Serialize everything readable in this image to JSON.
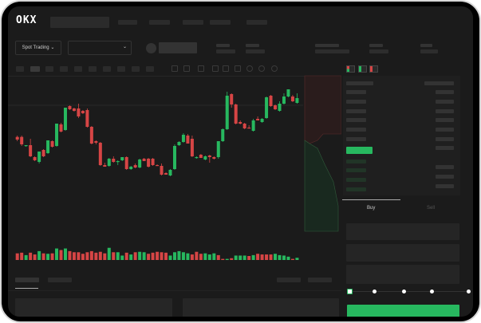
{
  "header": {
    "logo": "OKX"
  },
  "market": {
    "mode_button": "Spot Trading",
    "pair_dropdown": ""
  },
  "trade": {
    "tabs": [
      {
        "label": "Buy",
        "active": true
      },
      {
        "label": "Sell",
        "active": false
      }
    ],
    "slider_percent": 0
  },
  "colors": {
    "up": "#27b85f",
    "down": "#d64545",
    "background": "#1b1b1b",
    "panel": "#1f1f1f"
  },
  "icons": [
    "chevron-down-icon",
    "orderbook-both-icon",
    "orderbook-bids-icon",
    "orderbook-asks-icon",
    "indicator-icon",
    "draw-line-icon",
    "ruler-icon",
    "camera-icon",
    "settings-icon",
    "fullscreen-icon"
  ],
  "chart_data": {
    "type": "candlestick",
    "title": "",
    "candles": [
      [
        68.3,
        70,
        63,
        65
      ],
      [
        68.3,
        70,
        57,
        59
      ],
      [
        57,
        58,
        56,
        58
      ],
      [
        58,
        66,
        43,
        44
      ],
      [
        43,
        44,
        38,
        39
      ],
      [
        37,
        50,
        35,
        50
      ],
      [
        52,
        53,
        43,
        44
      ],
      [
        48,
        64,
        47,
        64
      ],
      [
        63,
        64,
        55,
        56
      ],
      [
        57,
        85,
        56,
        85
      ],
      [
        84,
        86,
        74,
        75
      ],
      [
        77,
        105,
        76,
        105
      ],
      [
        107,
        108,
        102,
        103
      ],
      [
        104,
        105,
        100,
        101
      ],
      [
        104,
        110,
        92,
        94
      ],
      [
        101,
        102,
        97,
        98
      ],
      [
        102,
        104,
        80,
        81
      ],
      [
        81,
        82,
        59,
        60
      ],
      [
        63,
        64,
        59,
        61
      ],
      [
        61,
        62,
        32,
        33
      ],
      [
        33,
        36,
        31,
        31
      ],
      [
        32,
        42,
        31,
        41
      ],
      [
        41,
        44,
        36,
        37
      ],
      [
        37,
        39,
        33,
        38
      ],
      [
        39,
        43,
        38,
        43
      ],
      [
        43,
        44,
        27,
        28
      ],
      [
        28,
        32,
        27,
        31
      ],
      [
        33,
        35,
        29,
        30
      ],
      [
        30,
        41,
        29,
        40
      ],
      [
        41,
        42,
        38,
        38
      ],
      [
        41,
        42,
        30,
        31
      ],
      [
        41,
        42,
        32,
        33
      ],
      [
        33,
        34,
        32,
        32
      ],
      [
        32,
        35,
        20,
        21
      ],
      [
        23,
        24,
        21,
        21
      ],
      [
        20,
        28,
        19,
        27
      ],
      [
        28,
        59,
        27,
        57
      ],
      [
        58,
        63,
        57,
        62
      ],
      [
        62,
        73,
        61,
        71
      ],
      [
        70,
        72,
        60,
        60
      ],
      [
        66,
        70,
        43,
        44
      ],
      [
        42,
        44,
        41,
        43
      ],
      [
        46,
        47,
        42,
        42
      ],
      [
        40,
        45,
        39,
        44
      ],
      [
        45,
        46,
        36,
        43
      ],
      [
        43,
        44,
        40,
        41
      ],
      [
        43,
        63,
        41,
        63
      ],
      [
        63,
        79,
        62,
        78
      ],
      [
        78,
        125,
        77,
        120
      ],
      [
        122,
        123,
        105,
        109
      ],
      [
        109,
        110,
        84,
        85
      ],
      [
        87,
        89,
        84,
        85
      ],
      [
        85,
        86,
        78,
        79
      ],
      [
        80,
        83,
        79,
        79
      ],
      [
        76,
        91,
        75,
        89
      ],
      [
        91,
        94,
        89,
        89
      ],
      [
        87,
        92,
        86,
        91
      ],
      [
        92,
        119,
        91,
        118
      ],
      [
        120,
        121,
        106,
        107
      ],
      [
        108,
        109,
        102,
        103
      ],
      [
        101,
        113,
        100,
        110
      ],
      [
        110,
        123,
        109,
        119
      ],
      [
        119,
        128,
        118,
        128
      ],
      [
        119,
        121,
        112,
        113
      ],
      [
        111,
        123,
        110,
        117
      ]
    ],
    "volume": [
      30,
      33,
      22,
      33,
      25,
      40,
      30,
      28,
      30,
      52,
      45,
      52,
      40,
      35,
      35,
      28,
      35,
      40,
      33,
      37,
      30,
      55,
      35,
      35,
      20,
      33,
      25,
      35,
      37,
      35,
      28,
      33,
      37,
      35,
      33,
      20,
      35,
      40,
      35,
      30,
      25,
      37,
      28,
      30,
      25,
      30,
      22,
      5,
      5,
      8,
      20,
      20,
      20,
      18,
      22,
      28,
      25,
      25,
      25,
      28,
      22,
      20,
      15,
      5,
      10
    ],
    "volume_colors": "rrgrrgrgrgrgrrrrrrrrrgrggrgrggrrrrrgggggrrrgggrrgrgggrgrrrrggggrg"
  }
}
